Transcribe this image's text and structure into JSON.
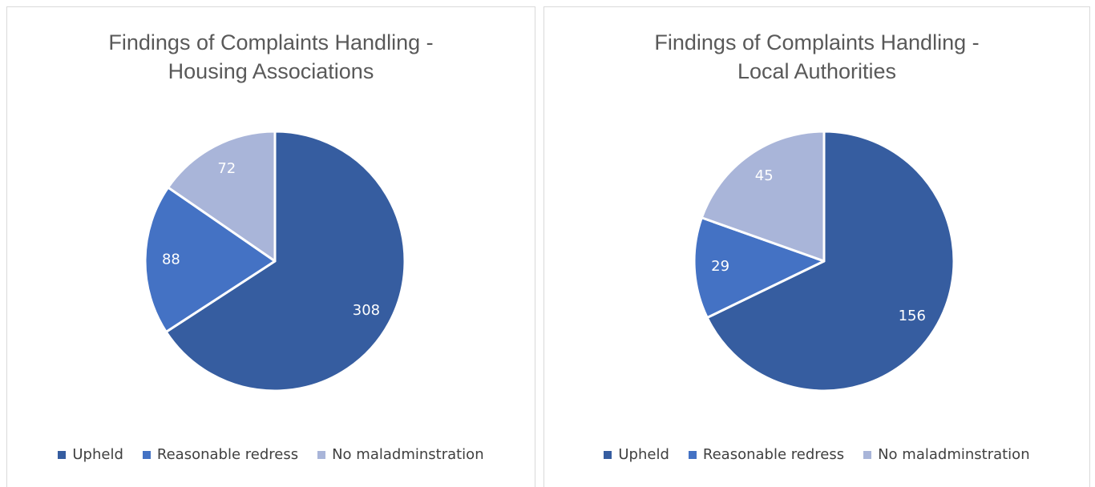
{
  "chart_data": [
    {
      "type": "pie",
      "title": "Findings of Complaints Handling - Housing Associations",
      "categories": [
        "Upheld",
        "Reasonable redress",
        "No maladminstration"
      ],
      "values": [
        308,
        88,
        72
      ],
      "colors": [
        "#365da0",
        "#4472c4",
        "#a9b5d9"
      ],
      "legend": "bottom"
    },
    {
      "type": "pie",
      "title": "Findings of Complaints Handling - Local Authorities",
      "categories": [
        "Upheld",
        "Reasonable redress",
        "No maladminstration"
      ],
      "values": [
        156,
        29,
        45
      ],
      "colors": [
        "#365da0",
        "#4472c4",
        "#a9b5d9"
      ],
      "legend": "bottom"
    }
  ]
}
